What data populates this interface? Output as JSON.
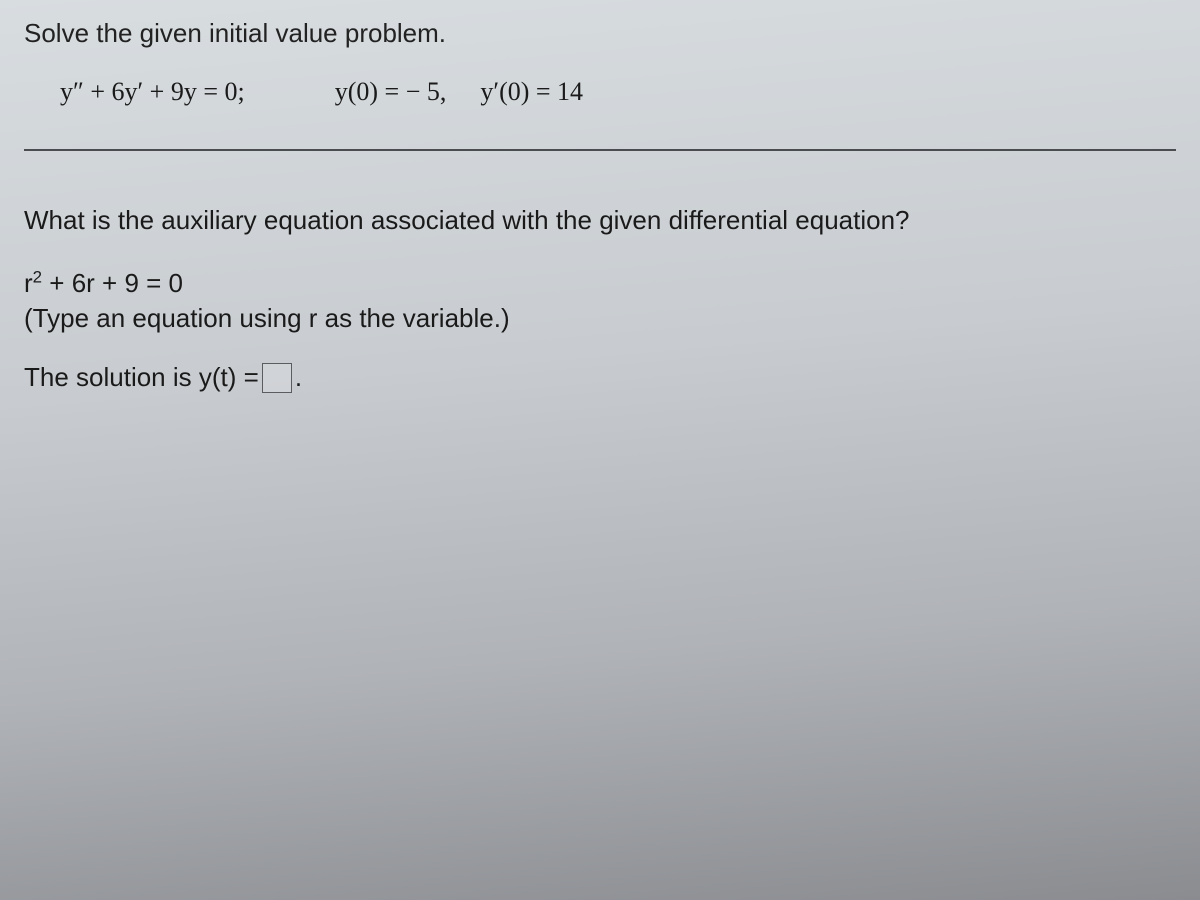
{
  "colors": {
    "bg_top": "#d8dde0",
    "bg_bottom": "#8a8c90",
    "text": "#1a1a1a",
    "divider": "#4a4c50",
    "input_border": "#5a5c60"
  },
  "typography": {
    "base_fontsize_pt": 20,
    "font_family": "Arial"
  },
  "problem": {
    "prompt": "Solve the given initial value problem.",
    "ode": "y″ + 6y′ + 9y = 0;",
    "ic1": "y(0) = − 5,",
    "ic2": "y′(0) = 14"
  },
  "part1": {
    "question": "What is the auxiliary equation associated with the given differential equation?",
    "aux_eq_lhs_base": "r",
    "aux_eq_lhs_exp": "2",
    "aux_eq_rest": " + 6r + 9 = 0",
    "hint": "(Type an equation using r as the variable.)"
  },
  "part2": {
    "label_before": "The solution is y(t) = ",
    "label_after": "."
  }
}
